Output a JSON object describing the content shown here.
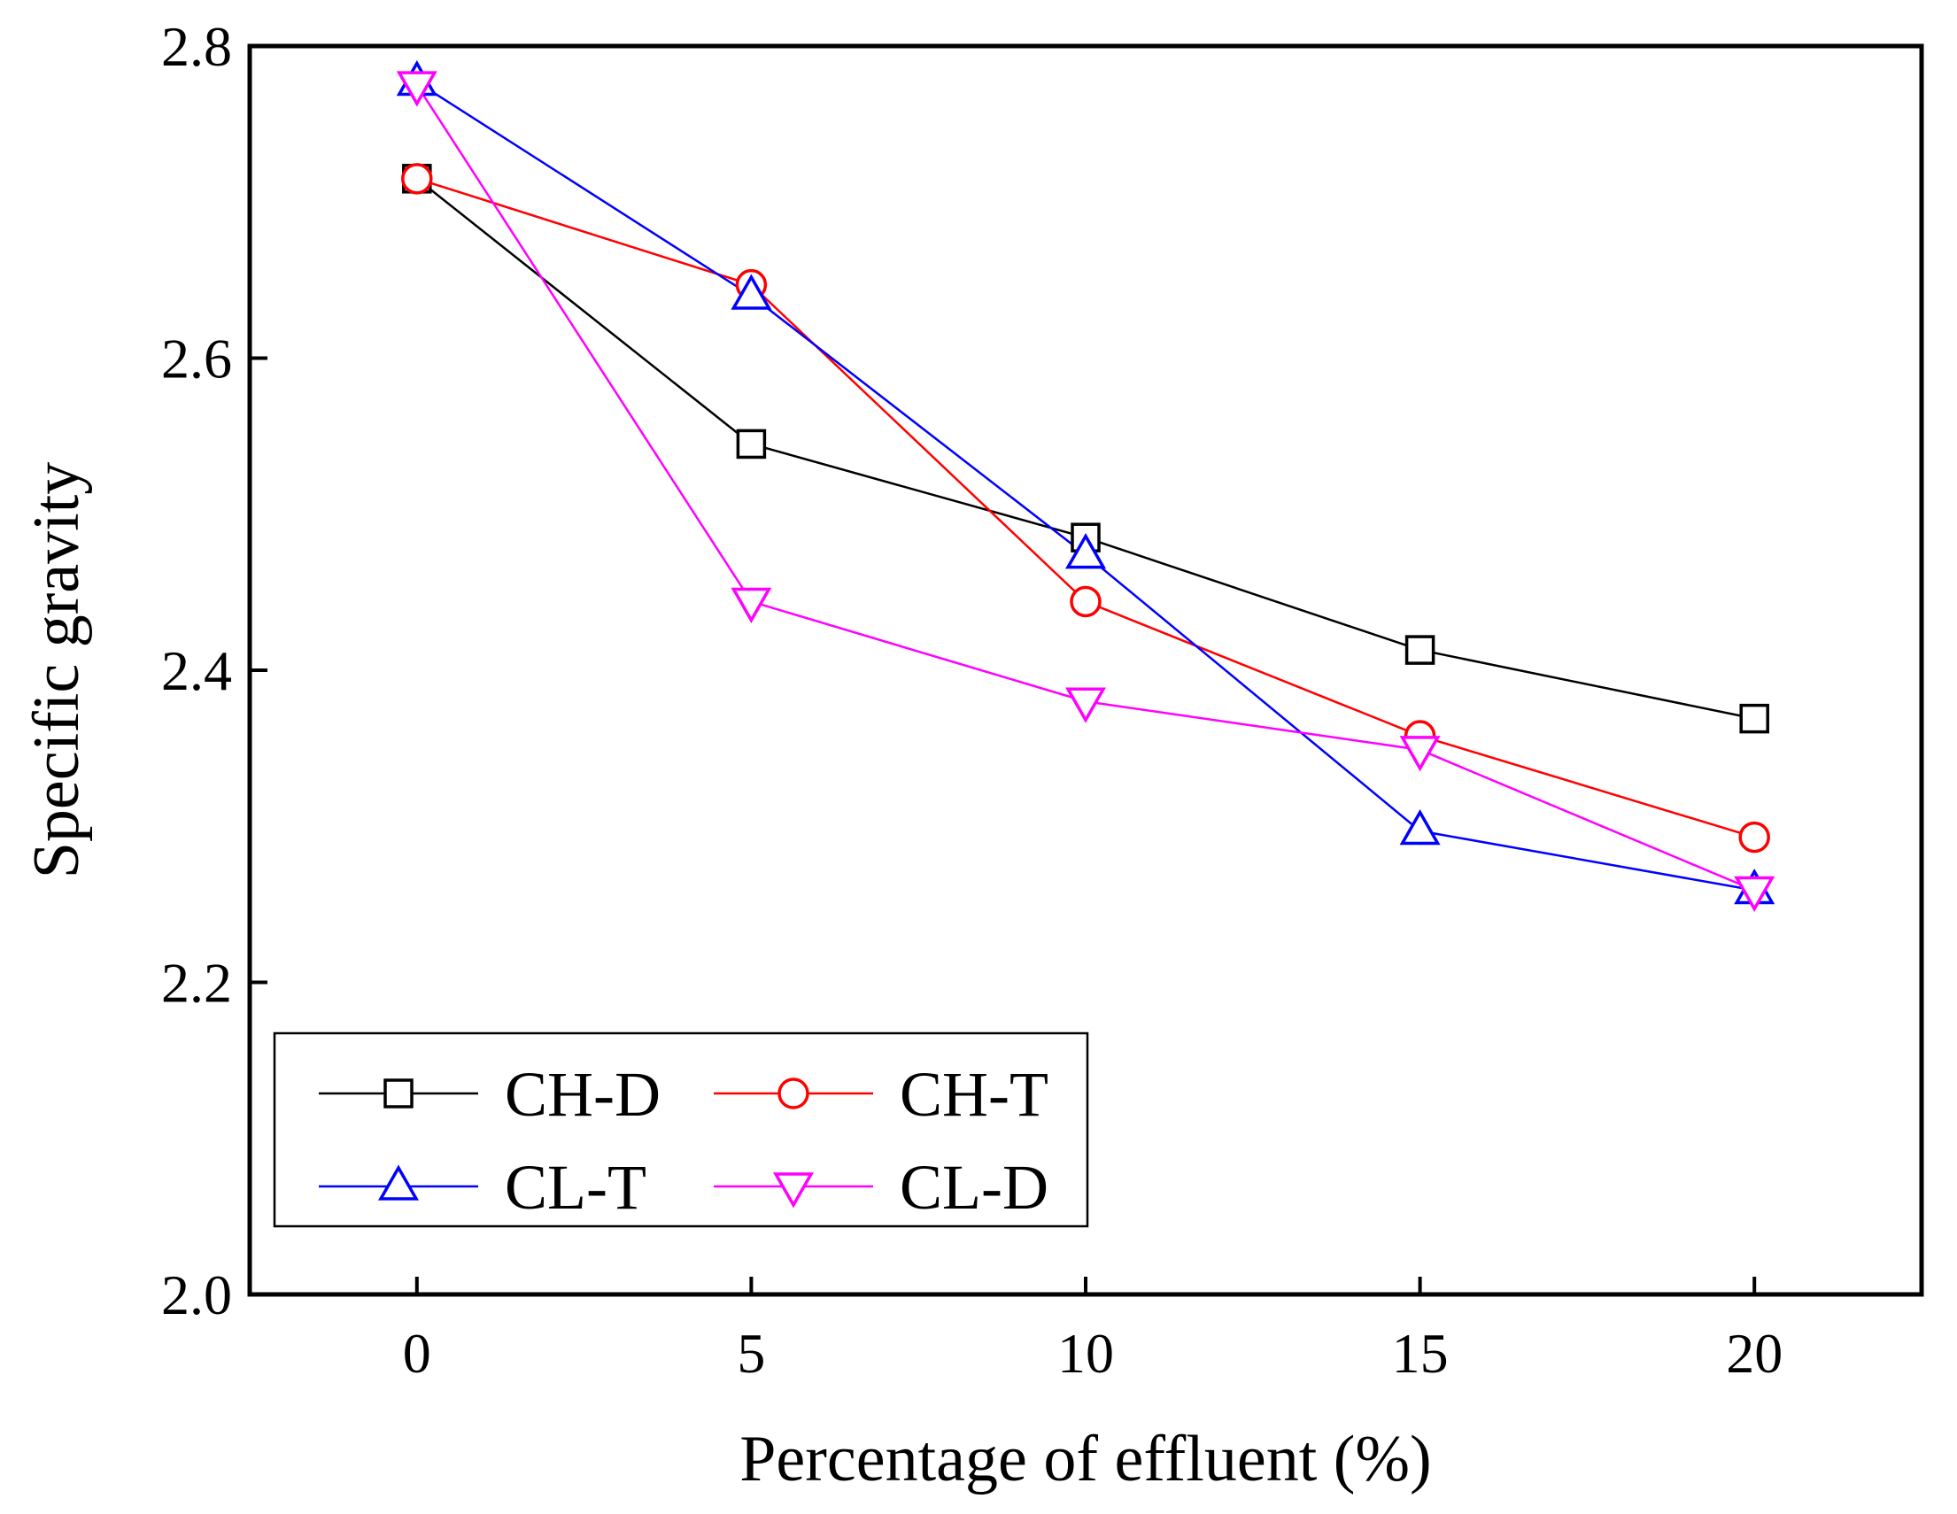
{
  "chart_data": {
    "type": "line",
    "title": "",
    "xlabel": "Percentage of effluent (%)",
    "ylabel": "Specific gravity",
    "x": [
      0,
      5,
      10,
      15,
      20
    ],
    "xlim": [
      -2.5,
      22.5
    ],
    "ylim": [
      2.0,
      2.8
    ],
    "xticks": [
      "0",
      "5",
      "10",
      "15",
      "20"
    ],
    "yticks": [
      "2.0",
      "2.2",
      "2.4",
      "2.6",
      "2.8"
    ],
    "grid": false,
    "legend": {
      "position": "bottom-left",
      "columns": 2
    },
    "series": [
      {
        "name": "CH-D",
        "color": "#000000",
        "marker": "square",
        "values": [
          2.715,
          2.545,
          2.485,
          2.413,
          2.369
        ]
      },
      {
        "name": "CH-T",
        "color": "#ff0000",
        "marker": "circle",
        "values": [
          2.715,
          2.647,
          2.444,
          2.358,
          2.293
        ]
      },
      {
        "name": "CL-T",
        "color": "#0000ff",
        "marker": "triangle-up",
        "values": [
          2.777,
          2.64,
          2.474,
          2.297,
          2.259
        ]
      },
      {
        "name": "CL-D",
        "color": "#ff00ff",
        "marker": "triangle-down",
        "values": [
          2.775,
          2.444,
          2.38,
          2.349,
          2.259
        ]
      }
    ]
  }
}
